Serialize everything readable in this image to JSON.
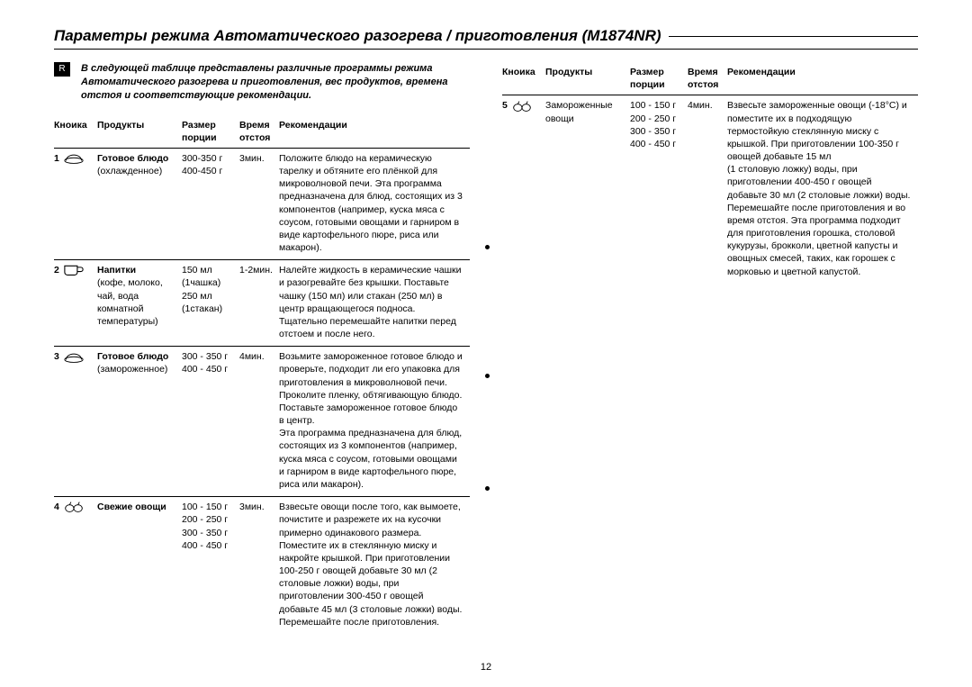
{
  "title": "Параметры режима Автоматического разогрева / приготовления (M1874NR)",
  "r_badge": "R",
  "intro": "В следующей таблице представлены различные программы режима Автоматического разогрева и приготовления, вес продуктов, времена отстоя и соответствующие рекомендации.",
  "page_number": "12",
  "headers": {
    "btn": "Кноика",
    "prod": "Продукты",
    "size": "Размер",
    "size_sub": "порции",
    "time": "Время",
    "time_sub": "отстоя",
    "rec": "Рекомендации"
  },
  "rows_left": [
    {
      "num": "1",
      "icon": "dish",
      "product_bold": "Готовое блюдо",
      "product_rest": "(охлажденное)",
      "size": "300-350 г\n400-450 г",
      "time": "3мин.",
      "rec": "Положите блюдо на керамическую тарелку и обтяните его плёнкой для микроволновой печи. Эта программа предназначена для блюд, состоящих из 3 компонентов (например, куска мяса с соусом, готовыми овощами и гарниром в виде картофельного пюре, риса или макарон)."
    },
    {
      "num": "2",
      "icon": "cup",
      "product_bold": "Напитки",
      "product_rest": "(кофе, молоко, чай, вода комнатной температуры)",
      "size": "150 мл\n(1чашка)\n250 мл\n(1стакан)",
      "time": "1-2мин.",
      "rec": "Налейте жидкость в керамические чашки и разогревайте без крышки. Поставьте чашку (150 мл) или стакан (250 мл) в центр вращающегося подноса. Тщательно перемешайте напитки перед отстоем и после него."
    },
    {
      "num": "3",
      "icon": "dish",
      "product_bold": "Готовое блюдо",
      "product_rest": "(замороженное)",
      "size": "300 - 350 г\n400 - 450 г",
      "time": "4мин.",
      "rec": "Возьмите замороженное готовое блюдо и проверьте, подходит ли его упаковка для приготовления в микроволновой печи. Проколите пленку, обтягивающую блюдо. Поставьте замороженное готовое блюдо в центр.\nЭта программа предназначена для блюд, состоящих из 3 компонентов (например, куска мяса с соусом, готовыми овощами и гарниром в виде картофельного пюре, риса или макарон)."
    },
    {
      "num": "4",
      "icon": "veg",
      "product_bold": "Свежие овощи",
      "product_rest": "",
      "size": "100 - 150 г\n200 - 250 г\n300 - 350 г\n400 - 450 г",
      "time": "3мин.",
      "rec": "Взвесьте овощи после того, как вымоете, почистите и разрежете их на кусочки примерно одинакового размера. Поместите их в стеклянную миску и накройте крышкой. При приготовлении 100-250 г овощей добавьте 30 мл (2 столовые ложки) воды, при приготовлении 300-450 г овощей добавьте 45 мл (3 столовые ложки) воды. Перемешайте после приготовления."
    }
  ],
  "rows_right": [
    {
      "num": "5",
      "icon": "veg",
      "product_bold": "",
      "product_rest": "Замороженные овощи",
      "size": "100 - 150 г\n200 - 250 г\n300 - 350 г\n400 - 450 г",
      "time": "4мин.",
      "rec": "Взвесьте замороженные овощи (-18°C) и поместите их в подходящую термостойкую стеклянную миску с крышкой. При приготовлении 100-350 г овощей добавьте 15 мл\n(1 столовую ложку) воды, при приготовлении 400-450 г овощей добавьте 30 мл (2 столовые ложки) воды.\nПеремешайте после приготовления и во время отстоя. Эта программа подходит для приготовления горошка, столовой кукурузы, брокколи, цветной капусты и овощных смесей, таких, как горошек с морковью и цветной капустой."
    }
  ],
  "colors": {
    "text": "#000000",
    "bg": "#ffffff",
    "rule": "#000000"
  }
}
